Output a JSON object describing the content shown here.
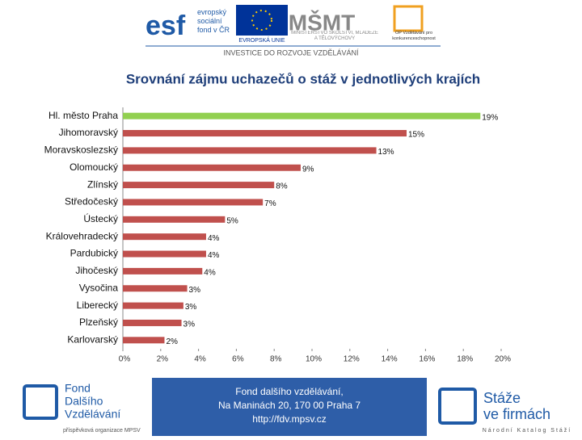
{
  "header": {
    "esf_text": "evropský sociální fond v ČR",
    "esf_logo": "esf",
    "eu_text": "EVROPSKÁ UNIE",
    "msmt_text": "MINISTERSTVO ŠKOLSTVÍ, MLÁDEŽE A TĚLOVÝCHOVY",
    "op_text": "OP Vzdělávání pro konkurenceschopnost",
    "tagline": "INVESTICE DO ROZVOJE VZDĚLÁVÁNÍ"
  },
  "chart_data": {
    "type": "hbar",
    "title": "Srovnání zájmu uchazečů o stáž v jednotlivých krajích",
    "categories": [
      "Hl. město Praha",
      "Jihomoravský",
      "Moravskoslezský",
      "Olomoucký",
      "Zlínský",
      "Středočeský",
      "Ústecký",
      "Královehradecký",
      "Pardubický",
      "Jihočeský",
      "Vysočina",
      "Liberecký",
      "Plzeňský",
      "Karlovarský"
    ],
    "values": [
      18.9,
      15.0,
      13.4,
      9.4,
      8.0,
      7.4,
      5.4,
      4.4,
      4.4,
      4.2,
      3.4,
      3.2,
      3.1,
      2.2
    ],
    "value_labels": [
      "19%",
      "15%",
      "13%",
      "9%",
      "8%",
      "7%",
      "5%",
      "4%",
      "4%",
      "4%",
      "3%",
      "3%",
      "3%",
      "2%"
    ],
    "colors": [
      "#92d050",
      "#c0504d",
      "#c0504d",
      "#c0504d",
      "#c0504d",
      "#c0504d",
      "#c0504d",
      "#c0504d",
      "#c0504d",
      "#c0504d",
      "#c0504d",
      "#c0504d",
      "#c0504d",
      "#c0504d"
    ],
    "xlim": [
      0,
      20
    ],
    "xticks": [
      {
        "value": 0,
        "label": "0%"
      },
      {
        "value": 2,
        "label": "2%"
      },
      {
        "value": 4,
        "label": "4%"
      },
      {
        "value": 6,
        "label": "6%"
      },
      {
        "value": 8,
        "label": "8%"
      },
      {
        "value": 10,
        "label": "10%"
      },
      {
        "value": 12,
        "label": "12%"
      },
      {
        "value": 14,
        "label": "14%"
      },
      {
        "value": 16,
        "label": "16%"
      },
      {
        "value": 18,
        "label": "18%"
      },
      {
        "value": 20,
        "label": "20%"
      }
    ]
  },
  "footer": {
    "fdv_lines": [
      "Fond",
      "Dalšího",
      "Vzdělávání"
    ],
    "fdv_sub": "příspěvková organizace MPSV",
    "address": [
      "Fond dalšího vzdělávání,",
      "Na Maninách 20, 170 00 Praha 7",
      "http://fdv.mpsv.cz"
    ],
    "staze_lines": [
      "Stáže",
      "ve firmách"
    ],
    "staze_sub": "Národní Katalog Stáží"
  }
}
